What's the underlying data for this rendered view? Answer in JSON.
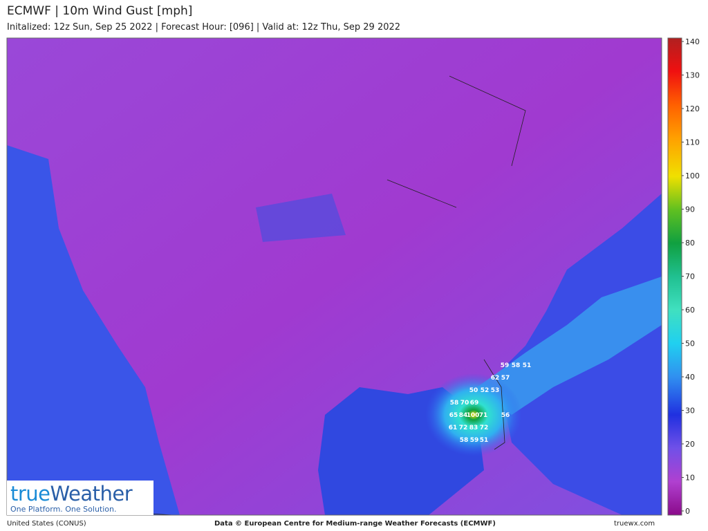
{
  "header": {
    "title": "ECMWF | 10m Wind Gust [mph]",
    "subtitle": "Initalized: 12z Sun, Sep 25 2022  |  Forecast Hour: [096]  |  Valid at: 12z Thu, Sep 29 2022"
  },
  "colorbar": {
    "ticks": [
      0,
      10,
      20,
      30,
      40,
      50,
      60,
      70,
      80,
      90,
      100,
      110,
      120,
      130,
      140
    ]
  },
  "map_labels": [
    59,
    58,
    51,
    62,
    57,
    50,
    52,
    53,
    58,
    70,
    69,
    65,
    84,
    100,
    71,
    56,
    61,
    72,
    83,
    72,
    58,
    59,
    51
  ],
  "logo": {
    "brand_a": "true",
    "brand_b": "Weather",
    "tagline": "One Platform. One Solution."
  },
  "footer": {
    "region": "United States (CONUS)",
    "credit": "Data © European Centre for Medium-range Weather Forecasts (ECMWF)",
    "site": "truewx.com"
  }
}
